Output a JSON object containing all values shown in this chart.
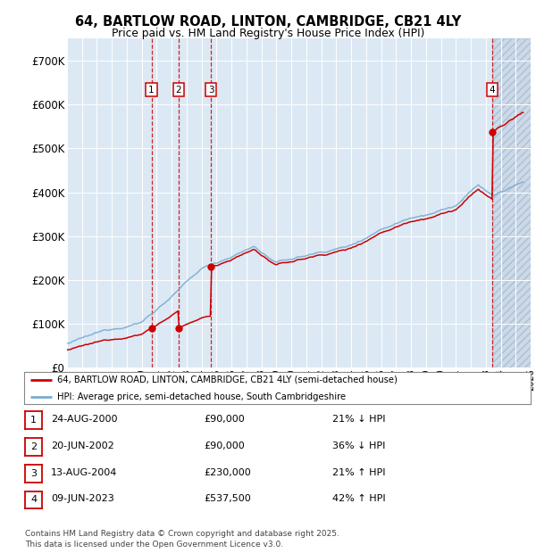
{
  "title_line1": "64, BARTLOW ROAD, LINTON, CAMBRIDGE, CB21 4LY",
  "title_line2": "Price paid vs. HM Land Registry's House Price Index (HPI)",
  "background_color": "#dce9f5",
  "grid_color": "#ffffff",
  "red_line_color": "#cc0000",
  "blue_line_color": "#7aadcf",
  "sale_prices": [
    90000,
    90000,
    230000,
    537500
  ],
  "sale_labels": [
    "1",
    "2",
    "3",
    "4"
  ],
  "sale_hpi_diff": [
    "21% ↓ HPI",
    "36% ↓ HPI",
    "21% ↑ HPI",
    "42% ↑ HPI"
  ],
  "sale_date_strs": [
    "24-AUG-2000",
    "20-JUN-2002",
    "13-AUG-2004",
    "09-JUN-2023"
  ],
  "sale_prices_str": [
    "£90,000",
    "£90,000",
    "£230,000",
    "£537,500"
  ],
  "ylim": [
    0,
    750000
  ],
  "yticks": [
    0,
    100000,
    200000,
    300000,
    400000,
    500000,
    600000,
    700000
  ],
  "ytick_labels": [
    "£0",
    "£100K",
    "£200K",
    "£300K",
    "£400K",
    "£500K",
    "£600K",
    "£700K"
  ],
  "xstart": 1995.0,
  "xend": 2026.0,
  "legend_red": "64, BARTLOW ROAD, LINTON, CAMBRIDGE, CB21 4LY (semi-detached house)",
  "legend_blue": "HPI: Average price, semi-detached house, South Cambridgeshire",
  "footer": "Contains HM Land Registry data © Crown copyright and database right 2025.\nThis data is licensed under the Open Government Licence v3.0."
}
